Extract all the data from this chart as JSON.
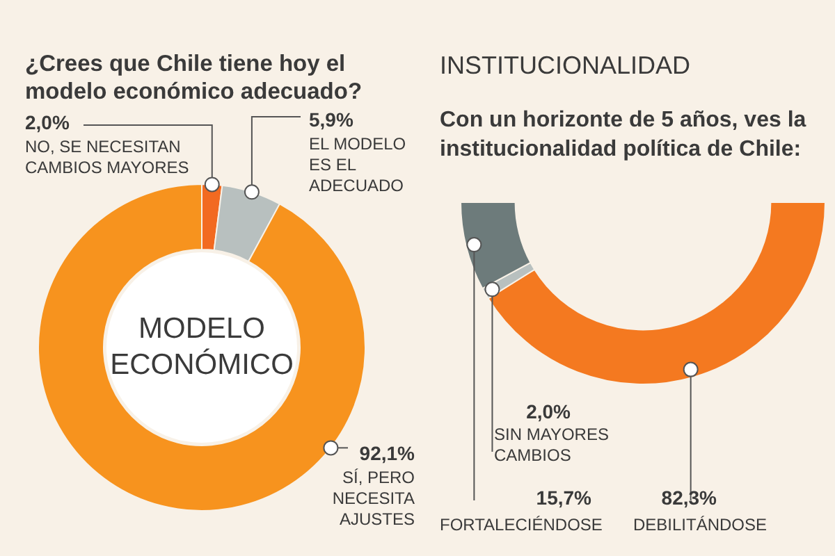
{
  "chart_data": [
    {
      "type": "donut",
      "title": "¿Crees que Chile tiene hoy el modelo económico adecuado?",
      "categories": [
        "NO, SE NECESITAN CAMBIOS MAYORES",
        "EL MODELO ES EL ADECUADO",
        "SÍ, PERO NECESITA AJUSTES"
      ],
      "values": [
        2.0,
        5.9,
        92.1
      ],
      "colors": [
        "#f26a21",
        "#b8c0bf",
        "#f7931e"
      ],
      "value_labels": [
        "2,0%",
        "5,9%",
        "92,1%"
      ],
      "annotations": [
        "MODELO ECONÓMICO"
      ]
    },
    {
      "type": "donut",
      "title": "INSTITUCIONALIDAD",
      "subtitle": "Con un horizonte de 5 años, ves la institucionalidad política de Chile:",
      "categories": [
        "DEBILITÁNDOSE",
        "SIN MAYORES CAMBIOS",
        "FORTALECIÉNDOSE"
      ],
      "values": [
        82.3,
        2.0,
        15.7
      ],
      "colors": [
        "#f47920",
        "#b8c0bf",
        "#6d7b7b"
      ],
      "value_labels": [
        "82,3%",
        "2,0%",
        "15,7%"
      ]
    }
  ]
}
